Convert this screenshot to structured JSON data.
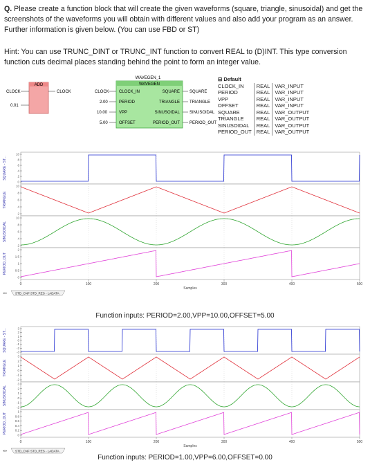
{
  "question": {
    "prefix": "Q.",
    "text": "Please create a function block that will create the given waveforms (square, triangle, sinusoidal) and get the screenshots of the waveforms you will obtain with different values and also add your program as an answer. Further information is given below. (You can use FBD or ST)"
  },
  "hint": "Hint: You can use TRUNC_DINT or TRUNC_INT function to convert REAL to (D)INT. This type conversion function cuts decimal places standing behind the point to form an integer value.",
  "fbd": {
    "add_block": {
      "title": "ADD",
      "in_label": "CLOCK",
      "in_value": "0.01",
      "out_label": "CLOCK"
    },
    "wavegen": {
      "instance": "WAVEGEN_1",
      "type": "WAVEGEN",
      "inputs": [
        {
          "name": "CLOCK_IN",
          "wire": "CLOCK"
        },
        {
          "name": "PERIOD",
          "wire": "2.00"
        },
        {
          "name": "VPP",
          "wire": "10.00"
        },
        {
          "name": "OFFSET",
          "wire": "5.00"
        }
      ],
      "outputs": [
        {
          "name": "SQUARE",
          "wire": "SQUARE"
        },
        {
          "name": "TRIANGLE",
          "wire": "TRIANGLE"
        },
        {
          "name": "SINUSOIDAL",
          "wire": "SINUSOIDAL"
        },
        {
          "name": "PERIOD_OUT",
          "wire": "PERIOD_OUT"
        }
      ]
    },
    "var_table": {
      "header": "Default",
      "rows": [
        [
          "CLOCK_IN",
          "REAL",
          "VAR_INPUT"
        ],
        [
          "PERIOD",
          "REAL",
          "VAR_INPUT"
        ],
        [
          "VPP",
          "REAL",
          "VAR_INPUT"
        ],
        [
          "OFFSET",
          "REAL",
          "VAR_INPUT"
        ],
        [
          "SQUARE",
          "REAL",
          "VAR_OUTPUT"
        ],
        [
          "TRIANGLE",
          "REAL",
          "VAR_OUTPUT"
        ],
        [
          "SINUSOIDAL",
          "REAL",
          "VAR_OUTPUT"
        ],
        [
          "PERIOD_OUT",
          "REAL",
          "VAR_OUTPUT"
        ]
      ]
    }
  },
  "plot1": {
    "tab": "STD_CNF STD_RES - LADATA",
    "xlabel": "Samples",
    "xticks": [
      "0",
      "100",
      "200",
      "300",
      "400",
      "500"
    ],
    "lanes": [
      {
        "label": "SQUARE - ST...",
        "ticks": [
          "10",
          "8",
          "6",
          "4",
          "2",
          "0"
        ]
      },
      {
        "label": "TRIANGLE",
        "ticks": [
          "10",
          "8",
          "6",
          "4",
          "2"
        ]
      },
      {
        "label": "SINUSOIDAL",
        "ticks": [
          "10",
          "8",
          "6",
          "4",
          "2"
        ]
      },
      {
        "label": "PERIOD_OUT",
        "ticks": [
          "2",
          "1.5",
          "1",
          "0.5",
          "0"
        ]
      }
    ],
    "caption": "Function inputs: PERIOD=2.00,VPP=10.00,OFFSET=5.00"
  },
  "plot2": {
    "tab": "STD_CNF STD_RES - LADATA",
    "xlabel": "Samples",
    "xticks": [
      "0",
      "100",
      "200",
      "300",
      "400",
      "500"
    ],
    "lanes": [
      {
        "label": "SQUARE - ST...",
        "ticks": [
          "3",
          "2",
          "1",
          "0",
          "-1",
          "-2",
          "-3"
        ]
      },
      {
        "label": "TRIANGLE",
        "ticks": [
          "3",
          "2",
          "1",
          "0",
          "-1",
          "-2"
        ]
      },
      {
        "label": "SINUSOIDAL",
        "ticks": [
          "3",
          "2",
          "1",
          "0",
          "-1",
          "-2"
        ]
      },
      {
        "label": "PERIOD_OUT",
        "ticks": [
          "1",
          "0.8",
          "0.6",
          "0.4",
          "0.2",
          "0"
        ]
      }
    ],
    "caption": "Function inputs: PERIOD=1.00,VPP=6.00,OFFSET=0.00"
  },
  "colors": {
    "square": "#1f2bd0",
    "triangle": "#e0303a",
    "sinus": "#2fa52f",
    "period": "#e040d8",
    "add_block": "#f4a6a6",
    "wavegen_block": "#a8e6a0"
  },
  "chart_data": [
    {
      "type": "line",
      "xlabel": "Samples",
      "xlim": [
        0,
        500
      ],
      "period_samples": 200,
      "series": [
        {
          "name": "SQUARE",
          "ylim": [
            0,
            10
          ],
          "shape": "square",
          "min": 0,
          "max": 10
        },
        {
          "name": "TRIANGLE",
          "ylim": [
            0,
            10
          ],
          "shape": "triangle",
          "min": 0,
          "max": 10
        },
        {
          "name": "SINUSOIDAL",
          "ylim": [
            0,
            10
          ],
          "shape": "sine",
          "min": 0,
          "max": 10
        },
        {
          "name": "PERIOD_OUT",
          "ylim": [
            0,
            2
          ],
          "shape": "sawtooth",
          "min": 0,
          "max": 2
        }
      ]
    },
    {
      "type": "line",
      "xlabel": "Samples",
      "xlim": [
        0,
        500
      ],
      "period_samples": 100,
      "series": [
        {
          "name": "SQUARE",
          "ylim": [
            -3,
            3
          ],
          "shape": "square",
          "min": -3,
          "max": 3
        },
        {
          "name": "TRIANGLE",
          "ylim": [
            -3,
            3
          ],
          "shape": "triangle",
          "min": -3,
          "max": 3
        },
        {
          "name": "SINUSOIDAL",
          "ylim": [
            -3,
            3
          ],
          "shape": "sine",
          "min": -3,
          "max": 3
        },
        {
          "name": "PERIOD_OUT",
          "ylim": [
            0,
            1
          ],
          "shape": "sawtooth",
          "min": 0,
          "max": 1
        }
      ]
    }
  ]
}
